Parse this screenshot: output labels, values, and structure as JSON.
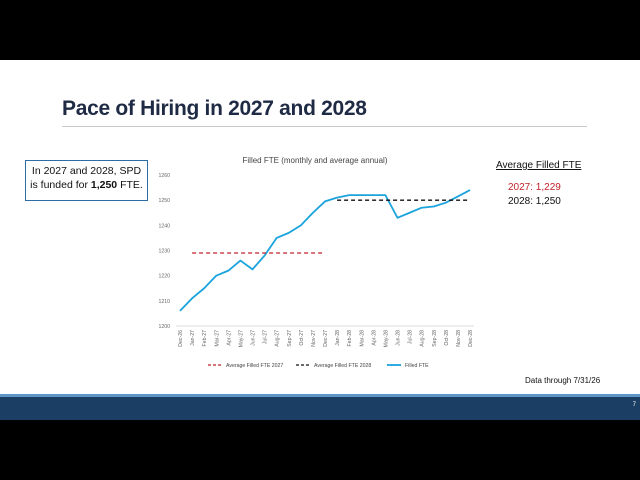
{
  "slide": {
    "title": "Pace of Hiring in 2027 and 2028",
    "callout": {
      "line1": "In 2027 and 2028, SPD",
      "line2_prefix": "is funded for ",
      "line2_bold": "1,250",
      "line2_suffix": " FTE."
    },
    "average_panel": {
      "heading": "Average Filled FTE",
      "line_2027": "2027: 1,229",
      "line_2028": "2028: 1,250"
    },
    "data_note": "Data through 7/31/26",
    "page_number": "7",
    "colors": {
      "title": "#1f2a44",
      "callout_border": "#2e6da4",
      "filled_fte_line": "#1aa3dc",
      "avg_2027": "#c0232b",
      "avg_2028": "#111111",
      "footer_bar": "#1b3f64",
      "footer_stripe": "#5e97c4"
    }
  },
  "chart_data": {
    "type": "line",
    "title": "Filled FTE (monthly and average annual)",
    "xlabel": "",
    "ylabel": "",
    "ylim": [
      1200,
      1260
    ],
    "yticks": [
      1200,
      1210,
      1220,
      1230,
      1240,
      1250,
      1260
    ],
    "grid": false,
    "legend_position": "bottom",
    "categories": [
      "Dec-26",
      "Jan-27",
      "Feb-27",
      "Mar-27",
      "Apr-27",
      "May-27",
      "Jun-27",
      "Jul-27",
      "Aug-27",
      "Sep-27",
      "Oct-27",
      "Nov-27",
      "Dec-27",
      "Jan-28",
      "Feb-28",
      "Mar-28",
      "Apr-28",
      "May-28",
      "Jun-28",
      "Jul-28",
      "Aug-28",
      "Sep-28",
      "Oct-28",
      "Nov-28",
      "Dec-28"
    ],
    "series": [
      {
        "name": "Filled FTE",
        "style": "solid",
        "color": "#1aa3dc",
        "values": [
          1206,
          1211,
          1215,
          1220,
          1222,
          1226,
          1222.5,
          1228,
          1235,
          1237,
          1240,
          1245,
          1249.5,
          1251,
          1252,
          1252,
          1252,
          1252,
          1243,
          1245,
          1247,
          1247.5,
          1249,
          1251.5,
          1254
        ]
      },
      {
        "name": "Average Filled FTE 2027",
        "style": "dashed",
        "color": "#c0232b",
        "x_range": [
          "Jan-27",
          "Dec-27"
        ],
        "value": 1229
      },
      {
        "name": "Average Filled FTE 2028",
        "style": "dashed",
        "color": "#111111",
        "x_range": [
          "Jan-28",
          "Dec-28"
        ],
        "value": 1250
      }
    ]
  }
}
